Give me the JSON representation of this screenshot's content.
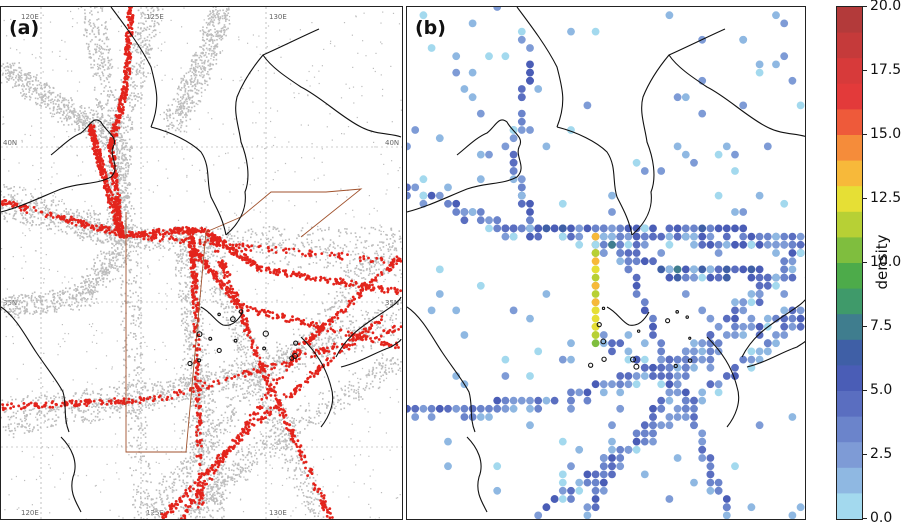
{
  "panels": [
    {
      "label": "(a)"
    },
    {
      "label": "(b)"
    }
  ],
  "gridlabels": {
    "top": [
      "120E",
      "125E",
      "130E"
    ],
    "left": [
      "40N",
      "35N"
    ],
    "right": [
      "40N",
      "35N"
    ],
    "bottom": [
      "120E",
      "125E",
      "130E"
    ]
  },
  "colorbar": {
    "label": "density",
    "ticks": [
      "20.0",
      "17.5",
      "15.0",
      "12.5",
      "10.0",
      "7.5",
      "5.0",
      "2.5",
      "0.0"
    ],
    "min": 0,
    "max": 20,
    "colors": [
      "#a3d9ee",
      "#8fb8e2",
      "#7e9bd6",
      "#6b84cb",
      "#5a6ec0",
      "#4a5db6",
      "#3f5fa6",
      "#3f7d8e",
      "#3f9a6a",
      "#4dab4a",
      "#7fbe3e",
      "#b7d035",
      "#e6df35",
      "#f7b93a",
      "#f58c3a",
      "#ee5a3a",
      "#e33a3a",
      "#d73a3a",
      "#c53a3a",
      "#b33a3a"
    ]
  },
  "colors": {
    "land_line": "#111111",
    "grid": "#9a9a9a",
    "ais_gray": "#bdbdbd",
    "ais_red": "#e3241c",
    "region_box": "#a0522d"
  }
}
